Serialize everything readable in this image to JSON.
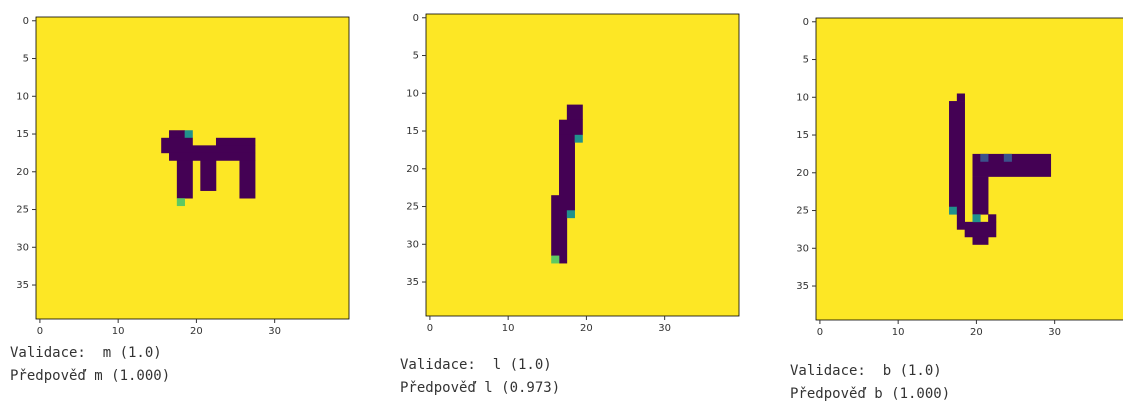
{
  "chart_data": [
    {
      "type": "image",
      "xlim": [
        -0.5,
        39.5
      ],
      "ylim": [
        39.5,
        -0.5
      ],
      "xticks": [
        0,
        10,
        20,
        30
      ],
      "yticks": [
        0,
        5,
        10,
        15,
        20,
        25,
        30,
        35
      ],
      "background": 1,
      "colormap": [
        "#440154",
        "#3b528b",
        "#21918c",
        "#5ec962",
        "#fde725"
      ],
      "cells": [
        {
          "x": 17,
          "y": 15,
          "w": 2,
          "h": 1,
          "value": 0
        },
        {
          "x": 19,
          "y": 15,
          "w": 1,
          "h": 1,
          "value": 0.5
        },
        {
          "x": 16,
          "y": 16,
          "w": 4,
          "h": 2,
          "value": 0
        },
        {
          "x": 23,
          "y": 16,
          "w": 5,
          "h": 1,
          "value": 0
        },
        {
          "x": 20,
          "y": 17,
          "w": 8,
          "h": 1,
          "value": 0
        },
        {
          "x": 17,
          "y": 18,
          "w": 11,
          "h": 1,
          "value": 0
        },
        {
          "x": 18,
          "y": 19,
          "w": 2,
          "h": 5,
          "value": 0
        },
        {
          "x": 21,
          "y": 19,
          "w": 2,
          "h": 4,
          "value": 0
        },
        {
          "x": 26,
          "y": 19,
          "w": 2,
          "h": 5,
          "value": 0
        },
        {
          "x": 18,
          "y": 24,
          "w": 1,
          "h": 1,
          "value": 0.75
        }
      ],
      "captions": [
        "Validace:  m (1.0)",
        "Předpověď m (1.000)"
      ]
    },
    {
      "type": "image",
      "xlim": [
        -0.5,
        39.5
      ],
      "ylim": [
        39.5,
        -0.5
      ],
      "xticks": [
        0,
        10,
        20,
        30
      ],
      "yticks": [
        0,
        5,
        10,
        15,
        20,
        25,
        30,
        35
      ],
      "background": 1,
      "colormap": [
        "#440154",
        "#3b528b",
        "#21918c",
        "#5ec962",
        "#fde725"
      ],
      "cells": [
        {
          "x": 18,
          "y": 12,
          "w": 2,
          "h": 2,
          "value": 0
        },
        {
          "x": 17,
          "y": 14,
          "w": 3,
          "h": 2,
          "value": 0
        },
        {
          "x": 17,
          "y": 16,
          "w": 2,
          "h": 10,
          "value": 0
        },
        {
          "x": 19,
          "y": 16,
          "w": 1,
          "h": 1,
          "value": 0.5
        },
        {
          "x": 16,
          "y": 24,
          "w": 1,
          "h": 8,
          "value": 0
        },
        {
          "x": 17,
          "y": 26,
          "w": 1,
          "h": 7,
          "value": 0
        },
        {
          "x": 18,
          "y": 26,
          "w": 1,
          "h": 1,
          "value": 0.5
        },
        {
          "x": 16,
          "y": 32,
          "w": 1,
          "h": 1,
          "value": 0.75
        }
      ],
      "captions": [
        "Validace:  l (1.0)",
        "Předpověď l (0.973)"
      ]
    },
    {
      "type": "image",
      "xlim": [
        -0.5,
        39.5
      ],
      "ylim": [
        39.5,
        -0.5
      ],
      "xticks": [
        0,
        10,
        20,
        30
      ],
      "yticks": [
        0,
        5,
        10,
        15,
        20,
        25,
        30,
        35
      ],
      "background": 1,
      "colormap": [
        "#440154",
        "#3b528b",
        "#21918c",
        "#5ec962",
        "#fde725"
      ],
      "cells": [
        {
          "x": 18,
          "y": 10,
          "w": 1,
          "h": 1,
          "value": 0
        },
        {
          "x": 17,
          "y": 11,
          "w": 2,
          "h": 14,
          "value": 0
        },
        {
          "x": 17,
          "y": 25,
          "w": 1,
          "h": 1,
          "value": 0.5
        },
        {
          "x": 18,
          "y": 25,
          "w": 1,
          "h": 3,
          "value": 0
        },
        {
          "x": 19,
          "y": 27,
          "w": 4,
          "h": 2,
          "value": 0
        },
        {
          "x": 20,
          "y": 29,
          "w": 2,
          "h": 1,
          "value": 0
        },
        {
          "x": 20,
          "y": 18,
          "w": 10,
          "h": 3,
          "value": 0
        },
        {
          "x": 21,
          "y": 18,
          "w": 1,
          "h": 1,
          "value": 0.25
        },
        {
          "x": 24,
          "y": 18,
          "w": 1,
          "h": 1,
          "value": 0.25
        },
        {
          "x": 20,
          "y": 21,
          "w": 2,
          "h": 5,
          "value": 0
        },
        {
          "x": 20,
          "y": 26,
          "w": 1,
          "h": 1,
          "value": 0.5
        },
        {
          "x": 22,
          "y": 26,
          "w": 1,
          "h": 1,
          "value": 0
        }
      ],
      "captions": [
        "Validace:  b (1.0)",
        "Předpověď b (1.000)"
      ]
    }
  ]
}
